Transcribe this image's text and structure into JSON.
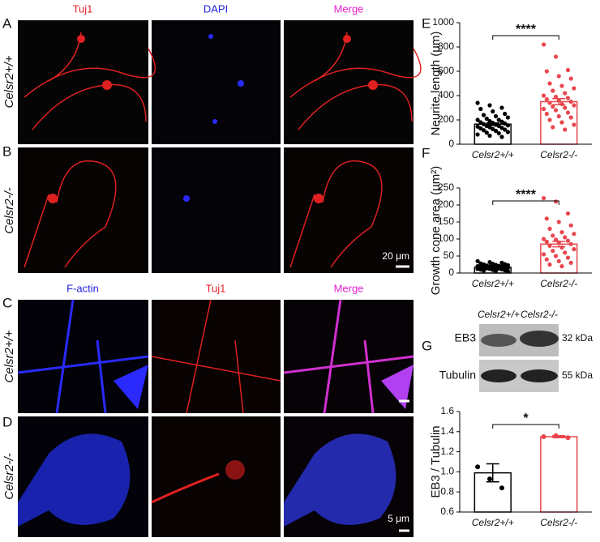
{
  "images": {
    "letters": [
      "A",
      "B",
      "C",
      "D"
    ],
    "top_labels_1": [
      "Tuj1",
      "DAPI",
      "Merge"
    ],
    "top_labels_2": [
      "F-actin",
      "Tuj1",
      "Merge"
    ],
    "genotypes": [
      "Celsr2+/+",
      "Celsr2-/-",
      "Celsr2+/+",
      "Celsr2-/-"
    ],
    "scale_bars": [
      "20 μm",
      "5 μm"
    ]
  },
  "blot": {
    "panel": "G",
    "lanes": [
      "Celsr2+/+",
      "Celsr2-/-"
    ],
    "rows": [
      "EB3",
      "Tubulin"
    ],
    "sizes": [
      "32 kDa",
      "55 kDa"
    ]
  },
  "chart_data": [
    {
      "type": "bar",
      "panel": "E",
      "ylabel": "Neurite length (μm)",
      "categories": [
        "Celsr2+/+",
        "Celsr2-/-"
      ],
      "values": [
        165,
        350
      ],
      "errors": [
        10,
        25
      ],
      "colors": [
        "#000000",
        "#e8474e"
      ],
      "significance": "****",
      "ylim": [
        0,
        1000
      ],
      "yticks": [
        0,
        200,
        400,
        600,
        800,
        1000
      ],
      "points": [
        [
          340,
          320,
          300,
          290,
          270,
          250,
          240,
          230,
          220,
          210,
          200,
          200,
          190,
          185,
          180,
          175,
          170,
          165,
          160,
          155,
          150,
          150,
          145,
          140,
          135,
          130,
          125,
          120,
          115,
          110,
          100,
          95,
          90,
          80,
          70,
          60
        ],
        [
          820,
          720,
          610,
          600,
          560,
          540,
          500,
          480,
          460,
          440,
          420,
          400,
          390,
          380,
          370,
          360,
          350,
          340,
          330,
          320,
          310,
          300,
          290,
          280,
          260,
          250,
          230,
          220,
          200,
          180,
          160,
          140,
          120
        ]
      ]
    },
    {
      "type": "bar",
      "panel": "F",
      "ylabel": "Growth cone area (μm²)",
      "categories": [
        "Celsr2+/+",
        "Celsr2-/-"
      ],
      "values": [
        17,
        85
      ],
      "errors": [
        2,
        8
      ],
      "colors": [
        "#000000",
        "#e8474e"
      ],
      "significance": "****",
      "ylim": [
        0,
        250
      ],
      "yticks": [
        0,
        50,
        100,
        150,
        200,
        250
      ],
      "points": [
        [
          35,
          32,
          30,
          28,
          27,
          26,
          25,
          24,
          23,
          22,
          21,
          20,
          20,
          19,
          18,
          18,
          17,
          16,
          15,
          15,
          14,
          13,
          12,
          12,
          11,
          10,
          9,
          8,
          7,
          6,
          5
        ],
        [
          220,
          210,
          175,
          160,
          150,
          140,
          130,
          120,
          115,
          110,
          105,
          100,
          98,
          95,
          92,
          90,
          85,
          80,
          75,
          70,
          65,
          60,
          55,
          50,
          45,
          40,
          35,
          30,
          25,
          20
        ]
      ]
    },
    {
      "type": "bar",
      "panel": "G",
      "ylabel": "EB3 / Tubulin",
      "categories": [
        "Celsr2+/+",
        "Celsr2-/-"
      ],
      "values": [
        0.99,
        1.35
      ],
      "errors": [
        0.09,
        0.01
      ],
      "colors": [
        "#000000",
        "#e8474e"
      ],
      "significance": "*",
      "ylim": [
        0.6,
        1.6
      ],
      "yticks": [
        0.6,
        0.8,
        {
          "value": 1,
          "label": "1.0"
        },
        1.2,
        1.4,
        1.6
      ],
      "points": [
        [
          1.05,
          0.93,
          0.84
        ],
        [
          1.35,
          1.36,
          1.34
        ]
      ]
    }
  ]
}
